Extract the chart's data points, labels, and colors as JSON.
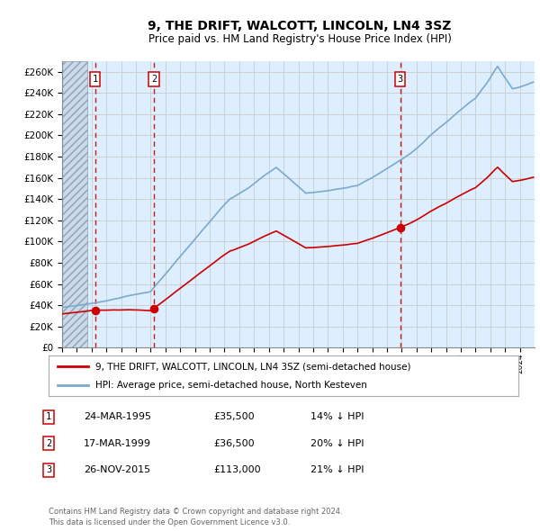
{
  "title": "9, THE DRIFT, WALCOTT, LINCOLN, LN4 3SZ",
  "subtitle": "Price paid vs. HM Land Registry's House Price Index (HPI)",
  "ytick_values": [
    0,
    20000,
    40000,
    60000,
    80000,
    100000,
    120000,
    140000,
    160000,
    180000,
    200000,
    220000,
    240000,
    260000
  ],
  "ylim": [
    0,
    270000
  ],
  "sale_dates_num": [
    1995.23,
    1999.21,
    2015.9
  ],
  "sale_prices": [
    35500,
    36500,
    113000
  ],
  "sale_labels": [
    "1",
    "2",
    "3"
  ],
  "legend_line1": "9, THE DRIFT, WALCOTT, LINCOLN, LN4 3SZ (semi-detached house)",
  "legend_line2": "HPI: Average price, semi-detached house, North Kesteven",
  "table_data": [
    [
      "1",
      "24-MAR-1995",
      "£35,500",
      "14% ↓ HPI"
    ],
    [
      "2",
      "17-MAR-1999",
      "£36,500",
      "20% ↓ HPI"
    ],
    [
      "3",
      "26-NOV-2015",
      "£113,000",
      "21% ↓ HPI"
    ]
  ],
  "footer": "Contains HM Land Registry data © Crown copyright and database right 2024.\nThis data is licensed under the Open Government Licence v3.0.",
  "price_line_color": "#cc0000",
  "hpi_line_color": "#7aaacc",
  "sale_dot_color": "#cc0000",
  "vline_color": "#cc0000",
  "grid_color": "#cccccc",
  "bg_chart": "#ddeeff"
}
